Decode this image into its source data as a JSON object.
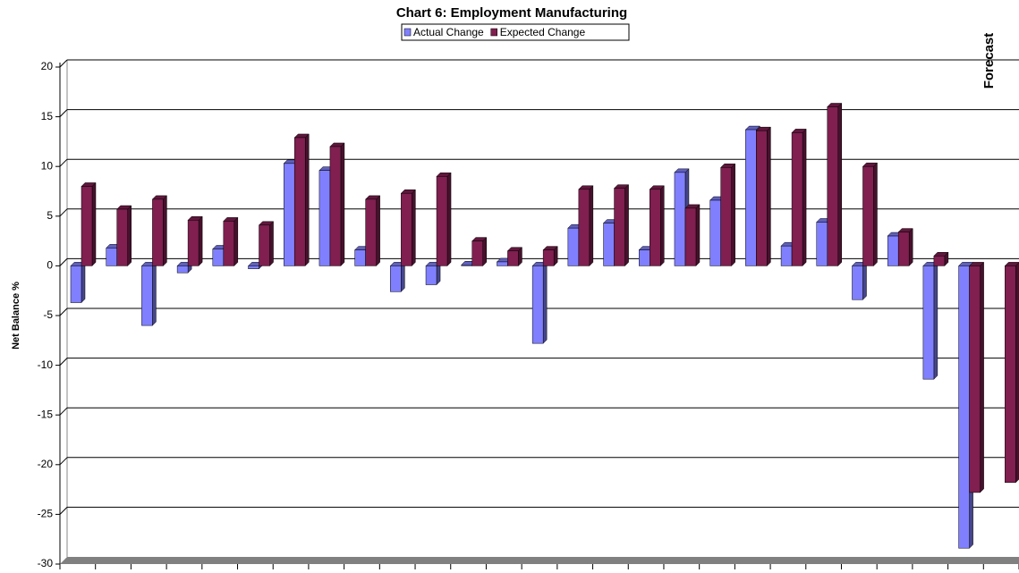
{
  "chart_data": {
    "type": "bar",
    "title": "Chart 6: Employment Manufacturing",
    "ylabel": "Net Balance %",
    "annotation": "Forecast",
    "categories": [
      null,
      null,
      null,
      null,
      null,
      null,
      null,
      null,
      null,
      null,
      null,
      null,
      null,
      null,
      null,
      null,
      null,
      null,
      null,
      null,
      null,
      null,
      null,
      null,
      null,
      null,
      null
    ],
    "series": [
      {
        "name": "Actual Change",
        "color": "#8080ff",
        "values": [
          -3.7,
          1.8,
          -6.0,
          -0.7,
          1.7,
          -0.3,
          10.3,
          9.6,
          1.6,
          -2.6,
          -1.9,
          0.1,
          0.4,
          -7.8,
          3.8,
          4.3,
          1.6,
          9.4,
          6.6,
          13.7,
          2.0,
          4.4,
          -3.4,
          3.0,
          -11.4,
          -28.4,
          null
        ]
      },
      {
        "name": "Expected Change",
        "color": "#801f50",
        "values": [
          8.0,
          5.7,
          6.7,
          4.6,
          4.5,
          4.1,
          12.9,
          12.0,
          6.7,
          7.3,
          9.0,
          2.5,
          1.5,
          1.6,
          7.7,
          7.8,
          7.7,
          5.8,
          9.9,
          13.6,
          13.4,
          16.0,
          10.0,
          3.4,
          1.0,
          -22.8,
          -21.8
        ]
      }
    ],
    "ylim": [
      -30,
      20
    ],
    "yticks": [
      -30,
      -25,
      -20,
      -15,
      -10,
      -5,
      0,
      5,
      10,
      15,
      20
    ],
    "grid": true,
    "legend": "top"
  }
}
